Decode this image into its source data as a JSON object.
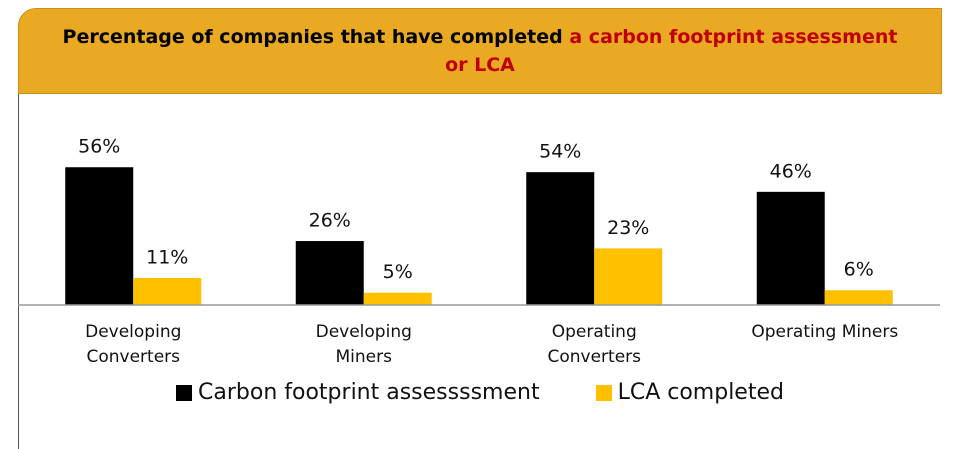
{
  "chart_data": {
    "type": "bar",
    "title": "Percentage of companies that have completed",
    "title_highlight": "a carbon footprint assessment or LCA",
    "categories": [
      "Developing Converters",
      "Developing Miners",
      "Operating Converters",
      "Operating Miners"
    ],
    "series": [
      {
        "name": "Carbon footprint assessssment",
        "color": "#000000",
        "values": [
          56,
          26,
          54,
          46
        ],
        "value_labels": [
          "56%",
          "26%",
          "54%",
          "46%"
        ]
      },
      {
        "name": "LCA completed",
        "color": "#FFC000",
        "values": [
          11,
          5,
          23,
          6
        ],
        "value_labels": [
          "11%",
          "5%",
          "23%",
          "6%"
        ]
      }
    ],
    "ylim": [
      0,
      100
    ],
    "legend": "bottom"
  }
}
